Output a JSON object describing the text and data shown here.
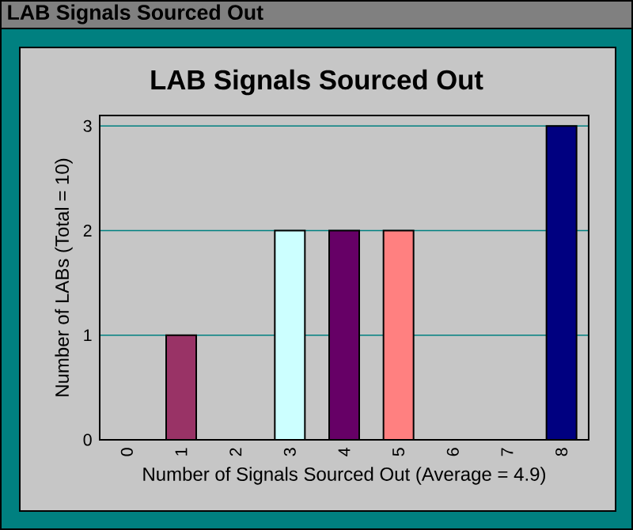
{
  "chart_data": {
    "type": "bar",
    "title": "LAB Signals Sourced Out",
    "annotations": [
      "LAB Signals Sourced Out"
    ],
    "xlabel": "Number of Signals Sourced Out  (Average = 4.9)",
    "ylabel": "Number of LABs  (Total = 10)",
    "categories": [
      "0",
      "1",
      "2",
      "3",
      "4",
      "5",
      "6",
      "7",
      "8"
    ],
    "values": [
      0,
      1,
      0,
      2,
      2,
      2,
      0,
      0,
      3
    ],
    "colors": [
      "#9999ff",
      "#993366",
      "#ffffcc",
      "#ccffff",
      "#660066",
      "#ff8080",
      "#0066cc",
      "#ccccff",
      "#000080"
    ],
    "ylim": [
      0,
      3.1
    ],
    "yticks": [
      0,
      1,
      2,
      3
    ],
    "grid": "y"
  }
}
